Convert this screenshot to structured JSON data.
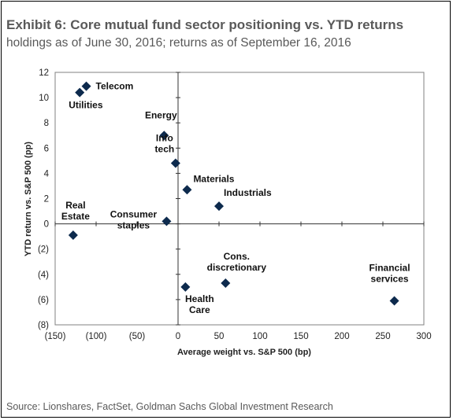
{
  "header": {
    "title": "Exhibit 6: Core mutual fund sector positioning vs. YTD returns",
    "subtitle": "holdings as of June 30, 2016; returns as of September 16, 2016"
  },
  "footer": {
    "source": "Source: Lionshares, FactSet, Goldman Sachs Global Investment Research"
  },
  "chart_data": {
    "type": "scatter",
    "title": "Exhibit 6: Core mutual fund sector positioning vs. YTD returns",
    "subtitle": "holdings as of June 30, 2016; returns as of September 16, 2016",
    "xlabel": "Average weight vs. S&P 500 (bp)",
    "ylabel": "YTD return vs. S&P 500 (pp)",
    "xlim": [
      -150,
      300
    ],
    "ylim": [
      -8,
      12
    ],
    "x_ticks": [
      -150,
      -100,
      -50,
      0,
      50,
      100,
      150,
      200,
      250,
      300
    ],
    "y_ticks": [
      -8,
      -6,
      -4,
      -2,
      0,
      2,
      4,
      6,
      8,
      10,
      12
    ],
    "x_tick_labels": [
      "(150)",
      "(100)",
      "(50)",
      "0",
      "50",
      "100",
      "150",
      "200",
      "250",
      "300"
    ],
    "y_tick_labels": [
      "(8)",
      "(6)",
      "(4)",
      "(2)",
      "0",
      "2",
      "4",
      "6",
      "8",
      "10",
      "12"
    ],
    "grid": false,
    "marker_color": "#0d2a4d",
    "points": [
      {
        "label": [
          "Telecom"
        ],
        "x": -112,
        "y": 10.9
      },
      {
        "label": [
          "Utilities"
        ],
        "x": -120,
        "y": 10.4
      },
      {
        "label": [
          "Energy"
        ],
        "x": -17,
        "y": 7.0
      },
      {
        "label": [
          "Info",
          "tech"
        ],
        "x": -3,
        "y": 4.8
      },
      {
        "label": [
          "Materials"
        ],
        "x": 11,
        "y": 2.7
      },
      {
        "label": [
          "Industrials"
        ],
        "x": 50,
        "y": 1.4
      },
      {
        "label": [
          "Real",
          "Estate"
        ],
        "x": -128,
        "y": -0.9
      },
      {
        "label": [
          "Consumer",
          "staples"
        ],
        "x": -14,
        "y": 0.2
      },
      {
        "label": [
          "Cons.",
          "discretionary"
        ],
        "x": 58,
        "y": -4.7
      },
      {
        "label": [
          "Health",
          "Care"
        ],
        "x": 9,
        "y": -5.0
      },
      {
        "label": [
          "Financial",
          "services"
        ],
        "x": 264,
        "y": -6.1
      }
    ]
  }
}
